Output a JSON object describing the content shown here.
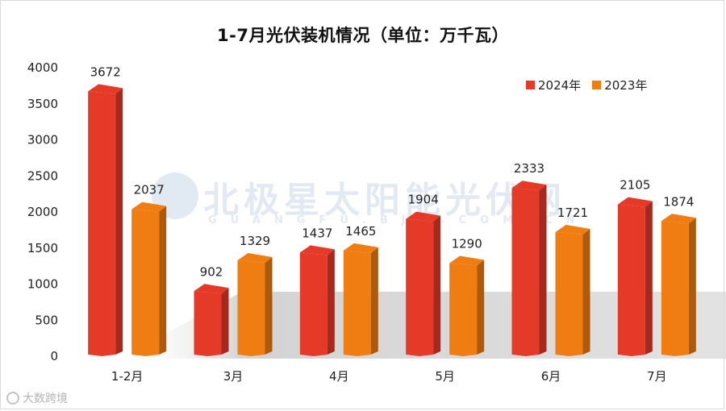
{
  "chart_data": {
    "type": "bar",
    "title": "1-7月光伏装机情况（单位：万千瓦）",
    "categories": [
      "1-2月",
      "3月",
      "4月",
      "5月",
      "6月",
      "7月"
    ],
    "series": [
      {
        "name": "2024年",
        "values": [
          3672,
          902,
          1437,
          1904,
          2333,
          2105
        ],
        "color": "#e53a28"
      },
      {
        "name": "2023年",
        "values": [
          2037,
          1329,
          1465,
          1290,
          1721,
          1874
        ],
        "color": "#f07d12"
      }
    ],
    "yticks": [
      0,
      500,
      1000,
      1500,
      2000,
      2500,
      3000,
      3500,
      4000
    ],
    "ylim": [
      0,
      4000
    ],
    "xlabel": "",
    "ylabel": "",
    "grid": false,
    "legend_position": "top-right"
  },
  "watermark": {
    "text": "北极星太阳能光伏网",
    "subtext": "GUANGFU.BJX.COM.CN"
  },
  "footer": {
    "brand": "大数跨境"
  }
}
